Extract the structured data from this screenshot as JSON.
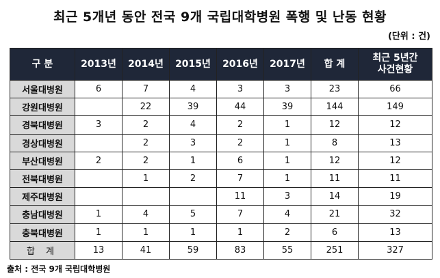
{
  "title": "최근 5개년 동안 전국 9개 국립대학병원 폭행 및 난동 현황",
  "unit": "(단위 : 건)",
  "table": {
    "headers": [
      "구 분",
      "2013년",
      "2014년",
      "2015년",
      "2016년",
      "2017년",
      "합 계",
      "최근 5년간\n사건현황"
    ],
    "rows": [
      {
        "label": "서울대병원",
        "cells": [
          "6",
          "7",
          "4",
          "3",
          "3",
          "23",
          "66"
        ]
      },
      {
        "label": "강원대병원",
        "cells": [
          "",
          "22",
          "39",
          "44",
          "39",
          "144",
          "149"
        ]
      },
      {
        "label": "경북대병원",
        "cells": [
          "3",
          "2",
          "4",
          "2",
          "1",
          "12",
          "12"
        ]
      },
      {
        "label": "경상대병원",
        "cells": [
          "",
          "2",
          "3",
          "2",
          "1",
          "8",
          "13"
        ]
      },
      {
        "label": "부산대병원",
        "cells": [
          "2",
          "2",
          "1",
          "6",
          "1",
          "12",
          "12"
        ]
      },
      {
        "label": "전북대병원",
        "cells": [
          "",
          "1",
          "2",
          "7",
          "1",
          "11",
          "11"
        ]
      },
      {
        "label": "제주대병원",
        "cells": [
          "",
          "",
          "",
          "11",
          "3",
          "14",
          "19"
        ]
      },
      {
        "label": "충남대병원",
        "cells": [
          "1",
          "4",
          "5",
          "7",
          "4",
          "21",
          "32"
        ]
      },
      {
        "label": "충북대병원",
        "cells": [
          "1",
          "1",
          "1",
          "1",
          "2",
          "6",
          "13"
        ]
      }
    ],
    "total": {
      "label": "합 계",
      "cells": [
        "13",
        "41",
        "59",
        "83",
        "55",
        "251",
        "327"
      ]
    }
  },
  "source": "출처 : 전국 9개 국립대학병원"
}
